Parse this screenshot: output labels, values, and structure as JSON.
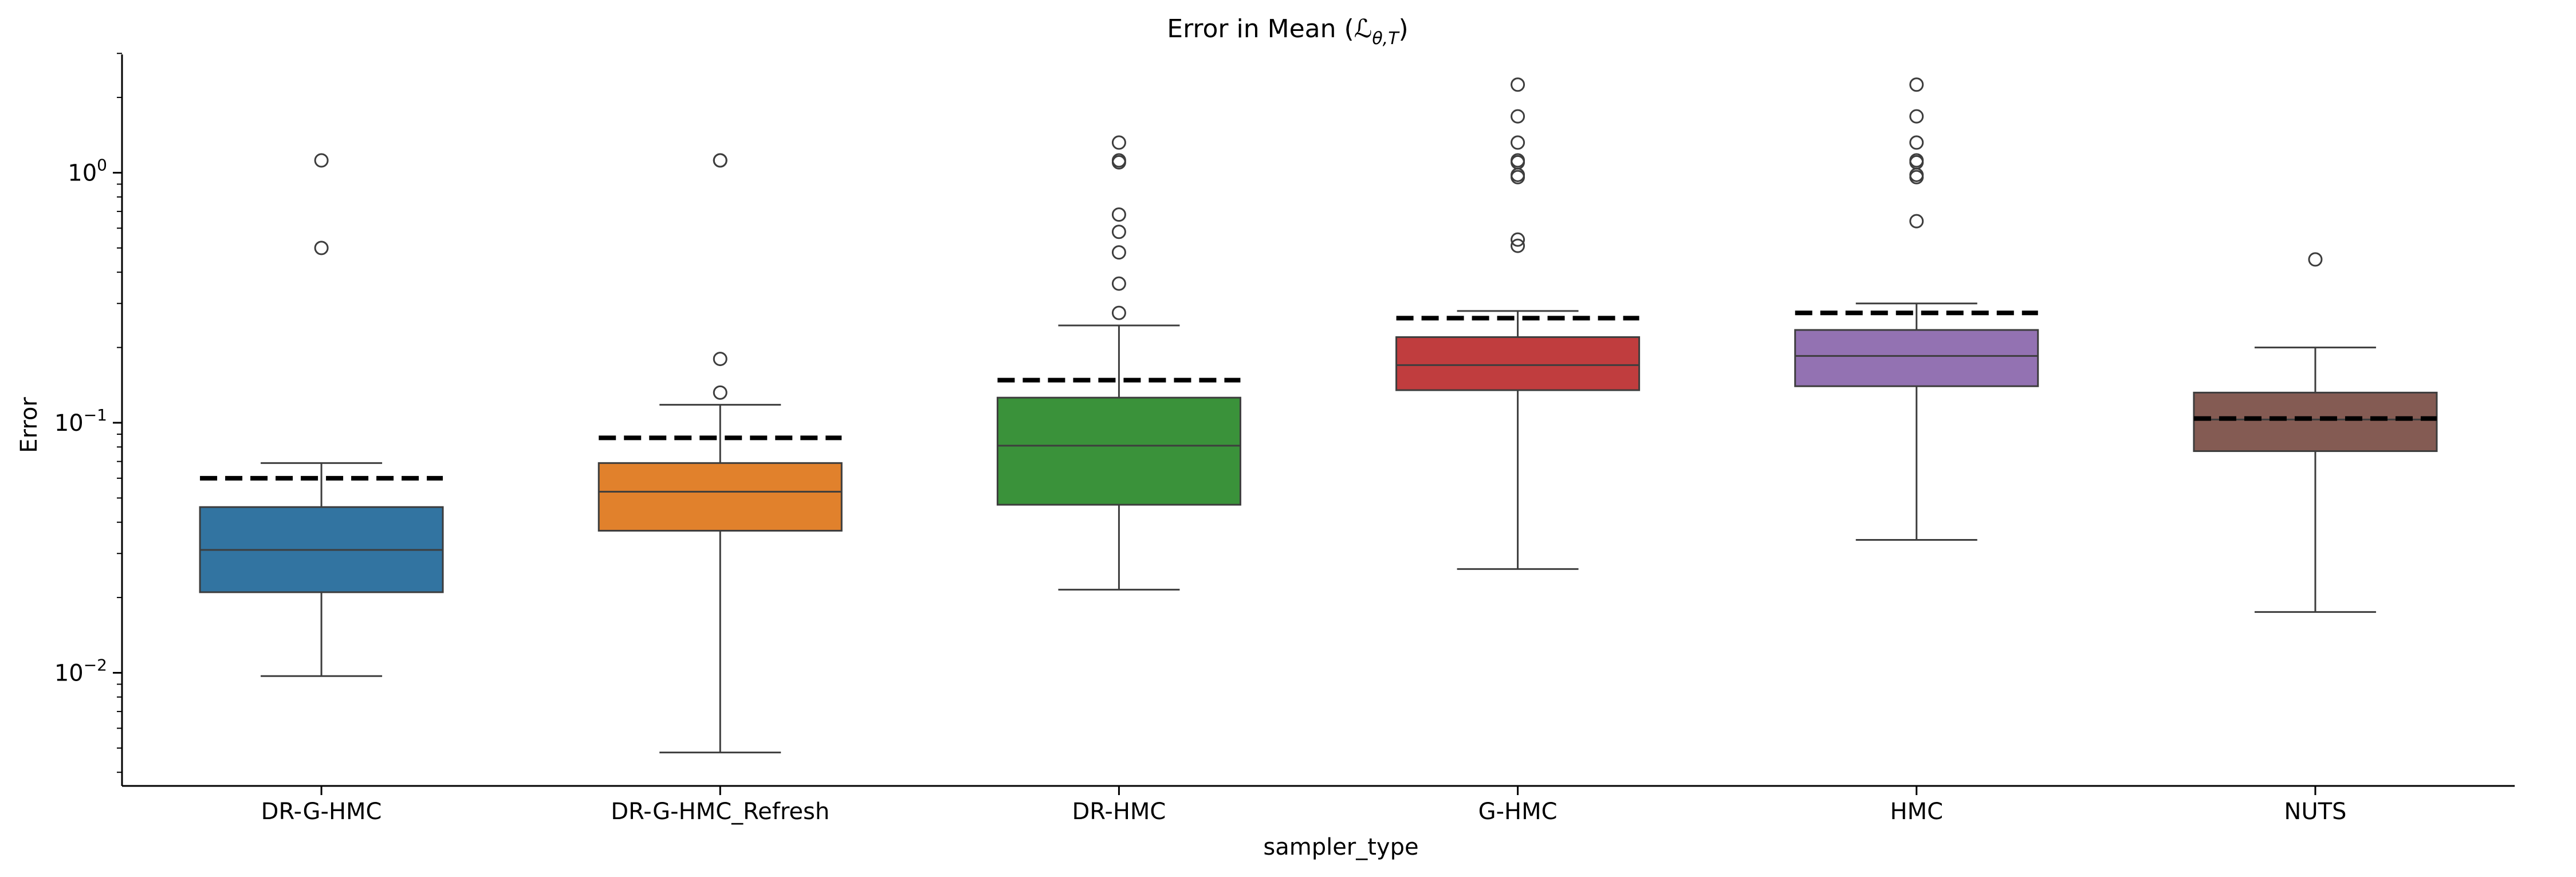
{
  "chart_data": {
    "type": "box",
    "title": "Error in Mean (ℒ",
    "title_sub": "θ,T",
    "title_close": ")",
    "xlabel": "sampler_type",
    "ylabel": "Error",
    "yscale": "log",
    "ylim": [
      0.0036,
      3.0
    ],
    "yticks": [
      {
        "value": 1,
        "base": "10",
        "exp": "0"
      },
      {
        "value": 0.1,
        "base": "10",
        "exp": "−1"
      },
      {
        "value": 0.01,
        "base": "10",
        "exp": "−2"
      }
    ],
    "categories": [
      "DR-G-HMC",
      "DR-G-HMC_Refresh",
      "DR-HMC",
      "G-HMC",
      "HMC",
      "NUTS"
    ],
    "grid": false,
    "mean_marker": "dashed black line",
    "boxes": [
      {
        "category": "DR-G-HMC",
        "color": "#3274a1",
        "whisker_low": 0.0097,
        "q1": 0.021,
        "median": 0.031,
        "q3": 0.046,
        "whisker_high": 0.069,
        "mean": 0.06,
        "outliers": [
          0.5,
          1.12
        ]
      },
      {
        "category": "DR-G-HMC_Refresh",
        "color": "#e1812c",
        "whisker_low": 0.0048,
        "q1": 0.037,
        "median": 0.053,
        "q3": 0.069,
        "whisker_high": 0.118,
        "mean": 0.087,
        "outliers": [
          0.132,
          0.18,
          1.12,
          1.12
        ]
      },
      {
        "category": "DR-HMC",
        "color": "#3a923a",
        "whisker_low": 0.0215,
        "q1": 0.047,
        "median": 0.081,
        "q3": 0.126,
        "whisker_high": 0.245,
        "mean": 0.148,
        "outliers": [
          0.275,
          0.36,
          0.48,
          0.58,
          0.68,
          1.1,
          1.12,
          1.32
        ]
      },
      {
        "category": "G-HMC",
        "color": "#c03d3e",
        "whisker_low": 0.026,
        "q1": 0.135,
        "median": 0.17,
        "q3": 0.22,
        "whisker_high": 0.28,
        "mean": 0.262,
        "outliers": [
          0.51,
          0.54,
          0.96,
          0.98,
          1.1,
          1.12,
          1.32,
          1.68,
          2.25
        ]
      },
      {
        "category": "HMC",
        "color": "#9372b2",
        "whisker_low": 0.034,
        "q1": 0.14,
        "median": 0.185,
        "q3": 0.235,
        "whisker_high": 0.3,
        "mean": 0.275,
        "outliers": [
          0.64,
          0.96,
          0.98,
          1.1,
          1.12,
          1.32,
          1.68,
          2.25
        ]
      },
      {
        "category": "NUTS",
        "color": "#845b53",
        "whisker_low": 0.0175,
        "q1": 0.077,
        "median": 0.103,
        "q3": 0.132,
        "whisker_high": 0.2,
        "mean": 0.104,
        "outliers": [
          0.45
        ]
      }
    ]
  }
}
